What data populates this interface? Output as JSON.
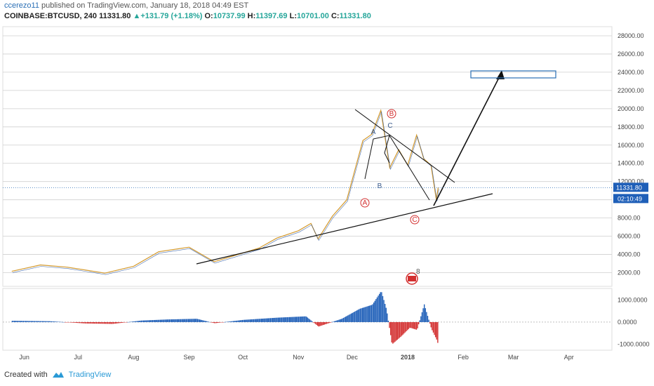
{
  "header": {
    "author": "ccerezo11",
    "published": "published on TradingView.com, January 18, 2018 04:49 EST",
    "symbol": "COINBASE:BTCUSD, 240",
    "last": "11331.80",
    "change": "+131.79 (+1.18%)",
    "o_label": "O:",
    "o": "10737.99",
    "h_label": "H:",
    "h": "11397.69",
    "l_label": "L:",
    "l": "10701.00",
    "c_label": "C:",
    "c": "11331.80"
  },
  "footer": {
    "created_with": "Created with",
    "brand": "TradingView"
  },
  "chart_data": {
    "type": "line",
    "title": "COINBASE:BTCUSD, 240",
    "price_axis": {
      "ticks": [
        "2000.00",
        "4000.00",
        "6000.00",
        "8000.00",
        "10000.00",
        "12000.00",
        "14000.00",
        "16000.00",
        "18000.00",
        "20000.00",
        "22000.00",
        "24000.00",
        "26000.00",
        "28000.00"
      ],
      "range": [
        500,
        29000
      ],
      "current_price_label": "11331.80",
      "countdown_label": "02:10:49"
    },
    "time_axis": {
      "ticks": [
        "Jun",
        "Jul",
        "Aug",
        "Sep",
        "Oct",
        "Nov",
        "Dec",
        "2018",
        "Feb",
        "Mar",
        "Apr"
      ]
    },
    "price_series": {
      "name": "BTCUSD",
      "x": [
        "2017-05-25",
        "2017-06-10",
        "2017-06-25",
        "2017-07-16",
        "2017-08-01",
        "2017-08-15",
        "2017-09-01",
        "2017-09-15",
        "2017-09-25",
        "2017-10-10",
        "2017-10-20",
        "2017-11-01",
        "2017-11-08",
        "2017-11-12",
        "2017-11-20",
        "2017-11-28",
        "2017-12-07",
        "2017-12-12",
        "2017-12-17",
        "2017-12-22",
        "2017-12-27",
        "2018-01-01",
        "2018-01-06",
        "2018-01-10",
        "2018-01-14",
        "2018-01-17",
        "2018-01-18"
      ],
      "y": [
        2150,
        2850,
        2600,
        1950,
        2700,
        4300,
        4800,
        3200,
        3800,
        4700,
        5800,
        6600,
        7400,
        5700,
        8200,
        10000,
        16500,
        17200,
        19800,
        13500,
        15500,
        13800,
        17100,
        14500,
        13800,
        10000,
        11331.8
      ]
    },
    "oscillator": {
      "ticks": [
        "1000.0000",
        "0.0000",
        "-1000.0000"
      ],
      "range": [
        -1200,
        1450
      ],
      "x": [
        "2017-05-25",
        "2017-06-15",
        "2017-07-05",
        "2017-07-20",
        "2017-08-05",
        "2017-08-20",
        "2017-09-05",
        "2017-09-15",
        "2017-10-01",
        "2017-10-20",
        "2017-11-05",
        "2017-11-12",
        "2017-11-25",
        "2017-12-05",
        "2017-12-12",
        "2017-12-17",
        "2017-12-20",
        "2017-12-23",
        "2017-12-28",
        "2018-01-02",
        "2018-01-06",
        "2018-01-10",
        "2018-01-14",
        "2018-01-17",
        "2018-01-18"
      ],
      "y": [
        60,
        40,
        -60,
        -80,
        70,
        120,
        150,
        -50,
        100,
        200,
        260,
        -200,
        150,
        600,
        780,
        1400,
        560,
        -1000,
        -650,
        -250,
        -350,
        800,
        -300,
        -800,
        -1050
      ]
    },
    "annotations": {
      "wave_labels": [
        "A",
        "B",
        "C",
        "A",
        "B",
        "C"
      ],
      "event_badge": "8"
    },
    "colors": {
      "up": "#26a69a",
      "down": "#d32f2f",
      "osc_pos": "#1f5fb8",
      "osc_neg": "#d32f2f",
      "target_box": "#2a6fb5"
    }
  }
}
